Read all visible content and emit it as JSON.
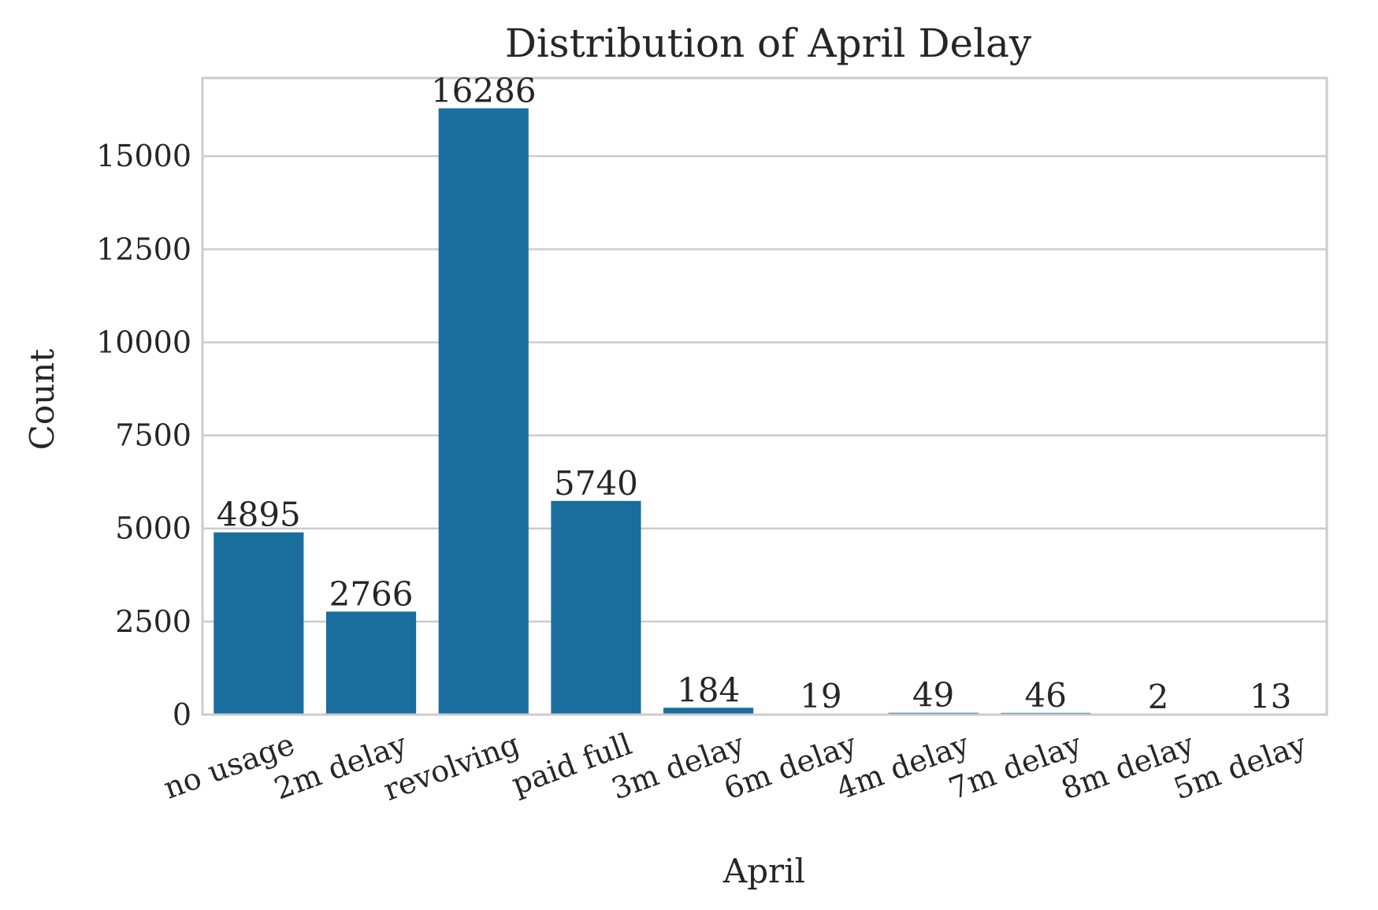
{
  "chart_data": {
    "type": "bar",
    "title": "Distribution of April Delay",
    "xlabel": "April",
    "ylabel": "Count",
    "categories": [
      "no usage",
      "2m delay",
      "revolving",
      "paid full",
      "3m delay",
      "6m delay",
      "4m delay",
      "7m delay",
      "8m delay",
      "5m delay"
    ],
    "values": [
      4895,
      2766,
      16286,
      5740,
      184,
      19,
      49,
      46,
      2,
      13
    ],
    "data_labels": [
      "4895",
      "2766",
      "16286",
      "5740",
      "184",
      "19",
      "49",
      "46",
      "2",
      "13"
    ],
    "yticks": [
      0,
      2500,
      5000,
      7500,
      10000,
      12500,
      15000
    ],
    "ytick_labels": [
      "0",
      "2500",
      "5000",
      "7500",
      "10000",
      "12500",
      "15000"
    ],
    "ylim": [
      0,
      17100
    ],
    "grid": "horizontal",
    "legend": "none",
    "bar_color": "#1a6e9e"
  }
}
